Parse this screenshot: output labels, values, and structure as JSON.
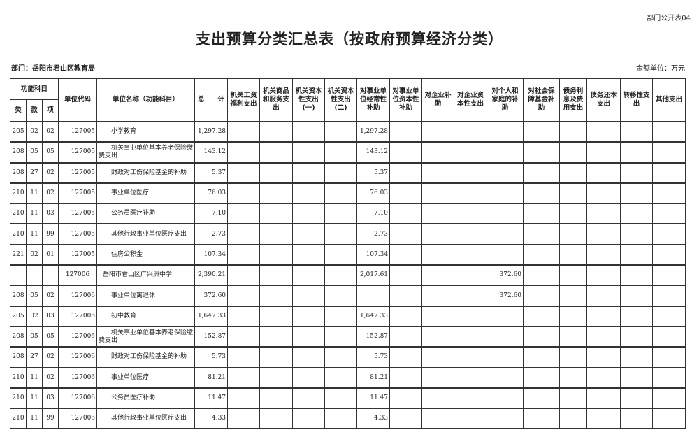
{
  "tag": "部门公开表04",
  "title": "支出预算分类汇总表（按政府预算经济分类）",
  "department": "部门：岳阳市君山区教育局",
  "unit": "金额单位：万元",
  "headers": {
    "func": "功能科目",
    "lei": "类",
    "kuan": "款",
    "xiang": "项",
    "code": "单位代码",
    "name": "单位名称（功能科目）",
    "total": "总　　计",
    "econ": [
      "机关工资福利支出",
      "机关商品和服务支出",
      "机关资本性支出(一)",
      "机关资本性支出(二)",
      "对事业单位经常性补助",
      "对事业单位资本性补助",
      "对企业补助",
      "对企业资本性支出",
      "对个人和家庭的补助",
      "对社会保障基金补助",
      "债务利息及费用支出",
      "债务还本支出",
      "转移性支出",
      "其他支出"
    ]
  },
  "rows": [
    {
      "lei": "205",
      "kuan": "02",
      "xiang": "02",
      "code": "127005",
      "name": "小学教育",
      "total": "1,297.28",
      "v": [
        "",
        "",
        "",
        "",
        "1,297.28",
        "",
        "",
        "",
        "",
        "",
        "",
        "",
        "",
        ""
      ]
    },
    {
      "lei": "208",
      "kuan": "05",
      "xiang": "05",
      "code": "127005",
      "name": "机关事业单位基本养老保险缴费支出",
      "total": "143.12",
      "v": [
        "",
        "",
        "",
        "",
        "143.12",
        "",
        "",
        "",
        "",
        "",
        "",
        "",
        "",
        ""
      ]
    },
    {
      "lei": "208",
      "kuan": "27",
      "xiang": "02",
      "code": "127005",
      "name": "财政对工伤保险基金的补助",
      "total": "5.37",
      "v": [
        "",
        "",
        "",
        "",
        "5.37",
        "",
        "",
        "",
        "",
        "",
        "",
        "",
        "",
        ""
      ]
    },
    {
      "lei": "210",
      "kuan": "11",
      "xiang": "02",
      "code": "127005",
      "name": "事业单位医疗",
      "total": "76.03",
      "v": [
        "",
        "",
        "",
        "",
        "76.03",
        "",
        "",
        "",
        "",
        "",
        "",
        "",
        "",
        ""
      ]
    },
    {
      "lei": "210",
      "kuan": "11",
      "xiang": "03",
      "code": "127005",
      "name": "公务员医疗补助",
      "total": "7.10",
      "v": [
        "",
        "",
        "",
        "",
        "7.10",
        "",
        "",
        "",
        "",
        "",
        "",
        "",
        "",
        ""
      ]
    },
    {
      "lei": "210",
      "kuan": "11",
      "xiang": "99",
      "code": "127005",
      "name": "其他行政事业单位医疗支出",
      "total": "2.73",
      "v": [
        "",
        "",
        "",
        "",
        "2.73",
        "",
        "",
        "",
        "",
        "",
        "",
        "",
        "",
        ""
      ]
    },
    {
      "lei": "221",
      "kuan": "02",
      "xiang": "01",
      "code": "127005",
      "name": "住房公积金",
      "total": "107.34",
      "v": [
        "",
        "",
        "",
        "",
        "107.34",
        "",
        "",
        "",
        "",
        "",
        "",
        "",
        "",
        ""
      ]
    },
    {
      "lei": "",
      "kuan": "",
      "xiang": "",
      "code": "127006",
      "name": "岳阳市君山区广兴洲中学",
      "total": "2,390.21",
      "unit_row": true,
      "v": [
        "",
        "",
        "",
        "",
        "2,017.61",
        "",
        "",
        "",
        "372.60",
        "",
        "",
        "",
        "",
        ""
      ]
    },
    {
      "lei": "208",
      "kuan": "05",
      "xiang": "02",
      "code": "127006",
      "name": "事业单位离退休",
      "total": "372.60",
      "v": [
        "",
        "",
        "",
        "",
        "",
        "",
        "",
        "",
        "372.60",
        "",
        "",
        "",
        "",
        ""
      ]
    },
    {
      "lei": "205",
      "kuan": "02",
      "xiang": "03",
      "code": "127006",
      "name": "初中教育",
      "total": "1,647.33",
      "v": [
        "",
        "",
        "",
        "",
        "1,647.33",
        "",
        "",
        "",
        "",
        "",
        "",
        "",
        "",
        ""
      ]
    },
    {
      "lei": "208",
      "kuan": "05",
      "xiang": "05",
      "code": "127006",
      "name": "机关事业单位基本养老保险缴费支出",
      "total": "152.87",
      "v": [
        "",
        "",
        "",
        "",
        "152.87",
        "",
        "",
        "",
        "",
        "",
        "",
        "",
        "",
        ""
      ]
    },
    {
      "lei": "208",
      "kuan": "27",
      "xiang": "02",
      "code": "127006",
      "name": "财政对工伤保险基金的补助",
      "total": "5.73",
      "v": [
        "",
        "",
        "",
        "",
        "5.73",
        "",
        "",
        "",
        "",
        "",
        "",
        "",
        "",
        ""
      ]
    },
    {
      "lei": "210",
      "kuan": "11",
      "xiang": "02",
      "code": "127006",
      "name": "事业单位医疗",
      "total": "81.21",
      "v": [
        "",
        "",
        "",
        "",
        "81.21",
        "",
        "",
        "",
        "",
        "",
        "",
        "",
        "",
        ""
      ]
    },
    {
      "lei": "210",
      "kuan": "11",
      "xiang": "03",
      "code": "127006",
      "name": "公务员医疗补助",
      "total": "11.47",
      "v": [
        "",
        "",
        "",
        "",
        "11.47",
        "",
        "",
        "",
        "",
        "",
        "",
        "",
        "",
        ""
      ]
    },
    {
      "lei": "210",
      "kuan": "11",
      "xiang": "99",
      "code": "127006",
      "name": "其他行政事业单位医疗支出",
      "total": "4.33",
      "v": [
        "",
        "",
        "",
        "",
        "4.33",
        "",
        "",
        "",
        "",
        "",
        "",
        "",
        "",
        ""
      ]
    }
  ]
}
